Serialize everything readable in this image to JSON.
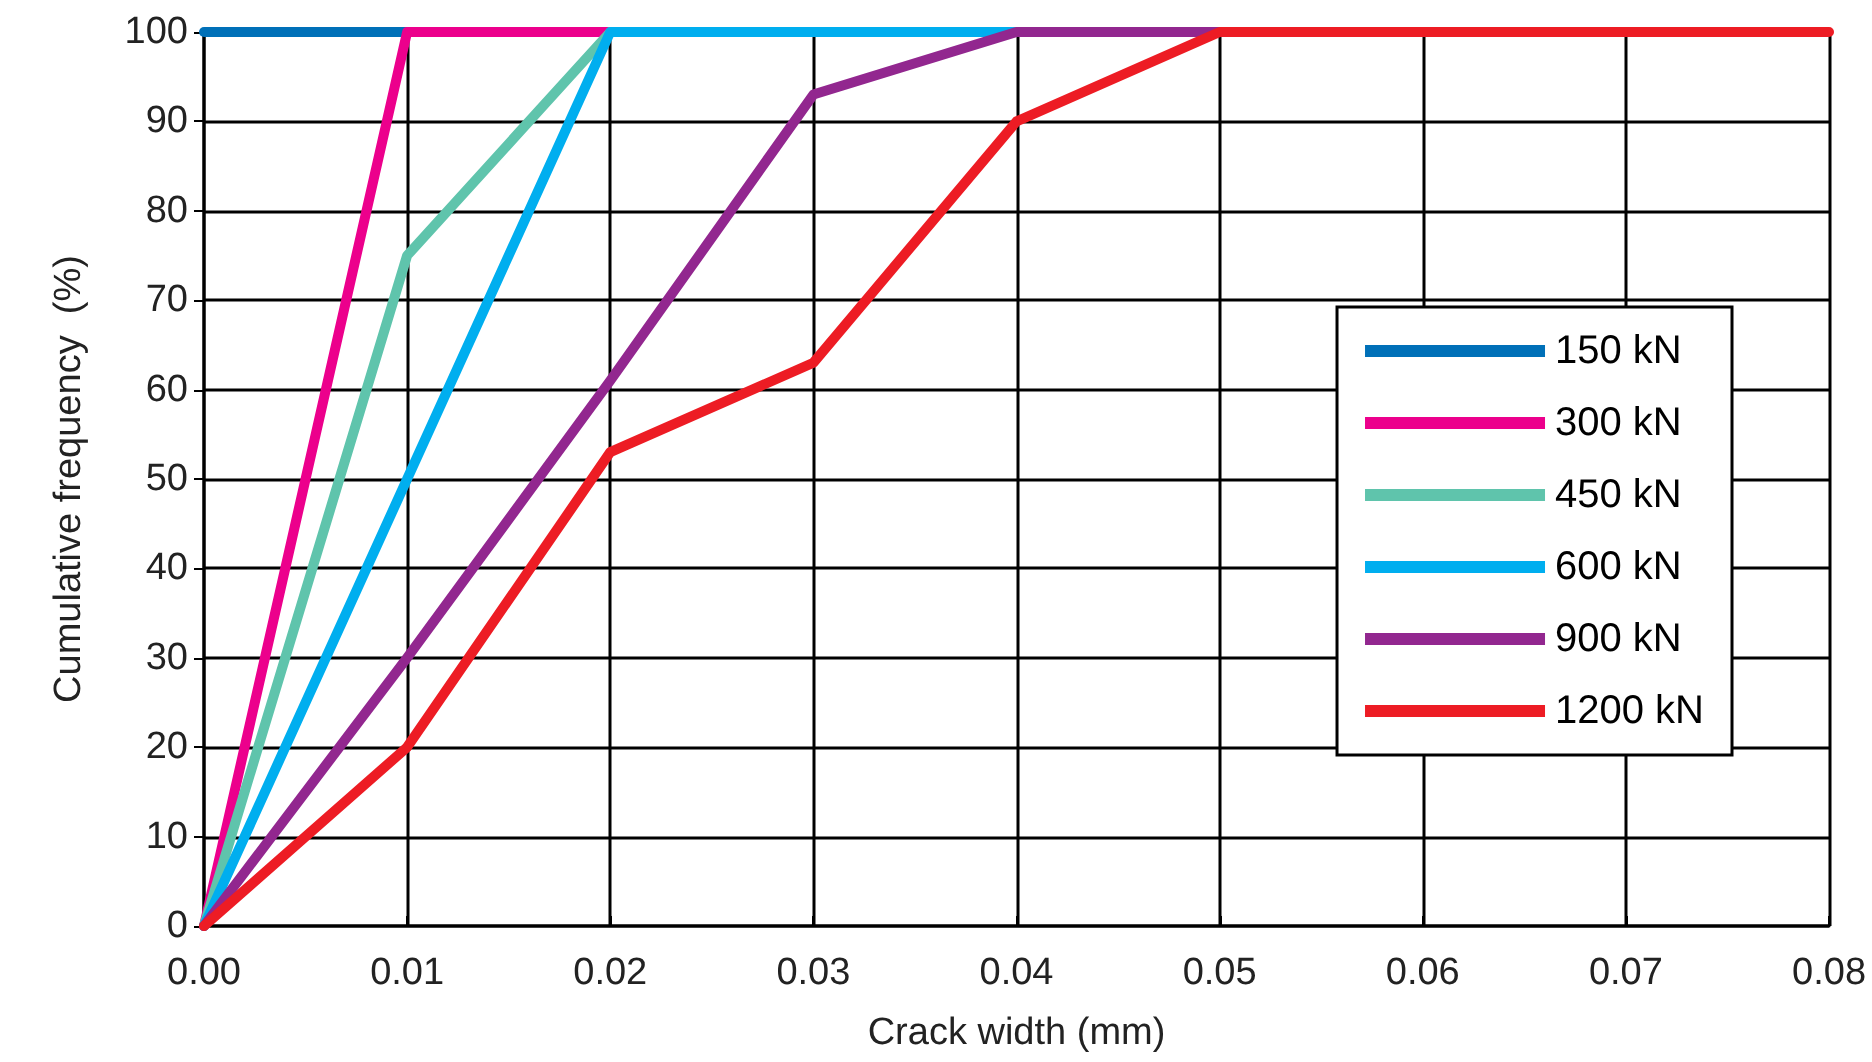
{
  "chart_data": {
    "type": "line",
    "xlabel": "Crack width (mm)",
    "ylabel": "Cumulative frequency  (%)",
    "xlim": [
      0,
      0.08
    ],
    "xticks": [
      {
        "value": 0,
        "label": "0.00"
      },
      {
        "value": 0.01,
        "label": "0.01"
      },
      {
        "value": 0.02,
        "label": "0.02"
      },
      {
        "value": 0.03,
        "label": "0.03"
      },
      {
        "value": 0.04,
        "label": "0.04"
      },
      {
        "value": 0.05,
        "label": "0.05"
      },
      {
        "value": 0.06,
        "label": "0.06"
      },
      {
        "value": 0.07,
        "label": "0.07"
      },
      {
        "value": 0.08,
        "label": "0.08"
      }
    ],
    "ylim": [
      0,
      100
    ],
    "yticks": [
      0,
      10,
      20,
      30,
      40,
      50,
      60,
      70,
      80,
      90,
      100
    ],
    "grid": true,
    "legend": "right",
    "marker": "none",
    "line_style": "solid",
    "series": [
      {
        "name": "150 kN",
        "color": "#0070b8",
        "x": [
          0,
          0.01
        ],
        "values": [
          100,
          100
        ]
      },
      {
        "name": "300 kN",
        "color": "#ec008c",
        "x": [
          0,
          0.01,
          0.02
        ],
        "values": [
          0,
          100,
          100
        ]
      },
      {
        "name": "450 kN",
        "color": "#5fc4ac",
        "x": [
          0,
          0.01,
          0.02
        ],
        "values": [
          0,
          75,
          100
        ]
      },
      {
        "name": "600 kN",
        "color": "#00aeef",
        "x": [
          0,
          0.02,
          0.04
        ],
        "values": [
          0,
          100,
          100
        ]
      },
      {
        "name": "900 kN",
        "color": "#92278f",
        "x": [
          0,
          0.01,
          0.02,
          0.03,
          0.04,
          0.05
        ],
        "values": [
          0,
          30,
          61,
          93,
          100,
          100
        ]
      },
      {
        "name": "1200 kN",
        "color": "#ed1c24",
        "x": [
          0,
          0.01,
          0.02,
          0.03,
          0.04,
          0.05,
          0.08
        ],
        "values": [
          0,
          20,
          53,
          63,
          90,
          100,
          100
        ]
      }
    ]
  }
}
